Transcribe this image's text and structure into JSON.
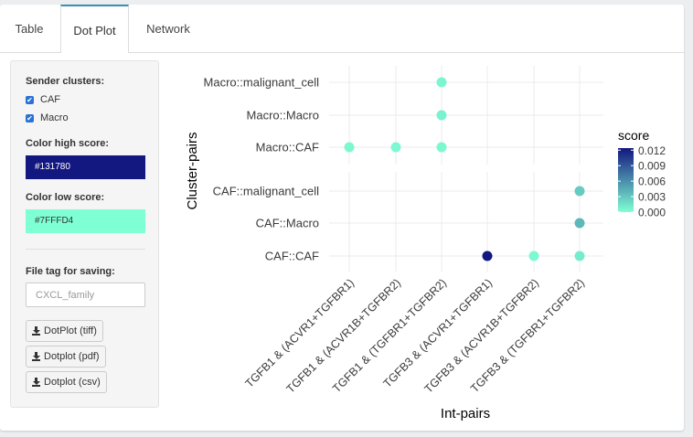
{
  "tabs": [
    "Table",
    "Dot Plot",
    "Network"
  ],
  "sidebar": {
    "sender_label": "Sender clusters:",
    "senders": [
      "CAF",
      "Macro"
    ],
    "high_label": "Color high score:",
    "high_value": "#131780",
    "low_label": "Color low score:",
    "low_value": "#7FFFD4",
    "file_tag_label": "File tag for saving:",
    "file_tag_placeholder": "CXCL_family",
    "buttons": [
      "DotPlot (tiff)",
      "Dotplot (pdf)",
      "Dotplot (csv)"
    ]
  },
  "colors": {
    "high": "#131780",
    "low": "#7FFFD4"
  },
  "chart_data": {
    "type": "scatter",
    "xlabel": "Int-pairs",
    "ylabel": "Cluster-pairs",
    "x_categories": [
      "TGFB1 & (ACVR1+TGFBR1)",
      "TGFB1 & (ACVR1B+TGFBR2)",
      "TGFB1 & (TGFBR1+TGFBR2)",
      "TGFB3 & (ACVR1+TGFBR1)",
      "TGFB3 & (ACVR1B+TGFBR2)",
      "TGFB3 & (TGFBR1+TGFBR2)"
    ],
    "facets": [
      {
        "y_categories": [
          "Macro::malignant_cell",
          "Macro::Macro",
          "Macro::CAF"
        ]
      },
      {
        "y_categories": [
          "CAF::malignant_cell",
          "CAF::Macro",
          "CAF::CAF"
        ]
      }
    ],
    "points": [
      {
        "facet": 0,
        "x": "TGFB1 & (TGFBR1+TGFBR2)",
        "y": "Macro::malignant_cell",
        "score": 0.0005
      },
      {
        "facet": 0,
        "x": "TGFB1 & (TGFBR1+TGFBR2)",
        "y": "Macro::Macro",
        "score": 0.0007
      },
      {
        "facet": 0,
        "x": "TGFB1 & (ACVR1+TGFBR1)",
        "y": "Macro::CAF",
        "score": 0.0004
      },
      {
        "facet": 0,
        "x": "TGFB1 & (ACVR1B+TGFBR2)",
        "y": "Macro::CAF",
        "score": 0.0003
      },
      {
        "facet": 0,
        "x": "TGFB1 & (TGFBR1+TGFBR2)",
        "y": "Macro::CAF",
        "score": 0.0004
      },
      {
        "facet": 1,
        "x": "TGFB3 & (TGFBR1+TGFBR2)",
        "y": "CAF::malignant_cell",
        "score": 0.0028
      },
      {
        "facet": 1,
        "x": "TGFB3 & (TGFBR1+TGFBR2)",
        "y": "CAF::Macro",
        "score": 0.0038
      },
      {
        "facet": 1,
        "x": "TGFB3 & (ACVR1+TGFBR1)",
        "y": "CAF::CAF",
        "score": 0.0124
      },
      {
        "facet": 1,
        "x": "TGFB3 & (ACVR1B+TGFBR2)",
        "y": "CAF::CAF",
        "score": 0.0003
      },
      {
        "facet": 1,
        "x": "TGFB3 & (TGFBR1+TGFBR2)",
        "y": "CAF::CAF",
        "score": 0.001
      }
    ],
    "legend": {
      "title": "score",
      "ticks": [
        "0.012",
        "0.009",
        "0.006",
        "0.003",
        "0.000"
      ],
      "tick_values": [
        0.012,
        0.009,
        0.006,
        0.003,
        0.0
      ],
      "range": [
        0.0,
        0.0124
      ]
    },
    "grid": true
  }
}
